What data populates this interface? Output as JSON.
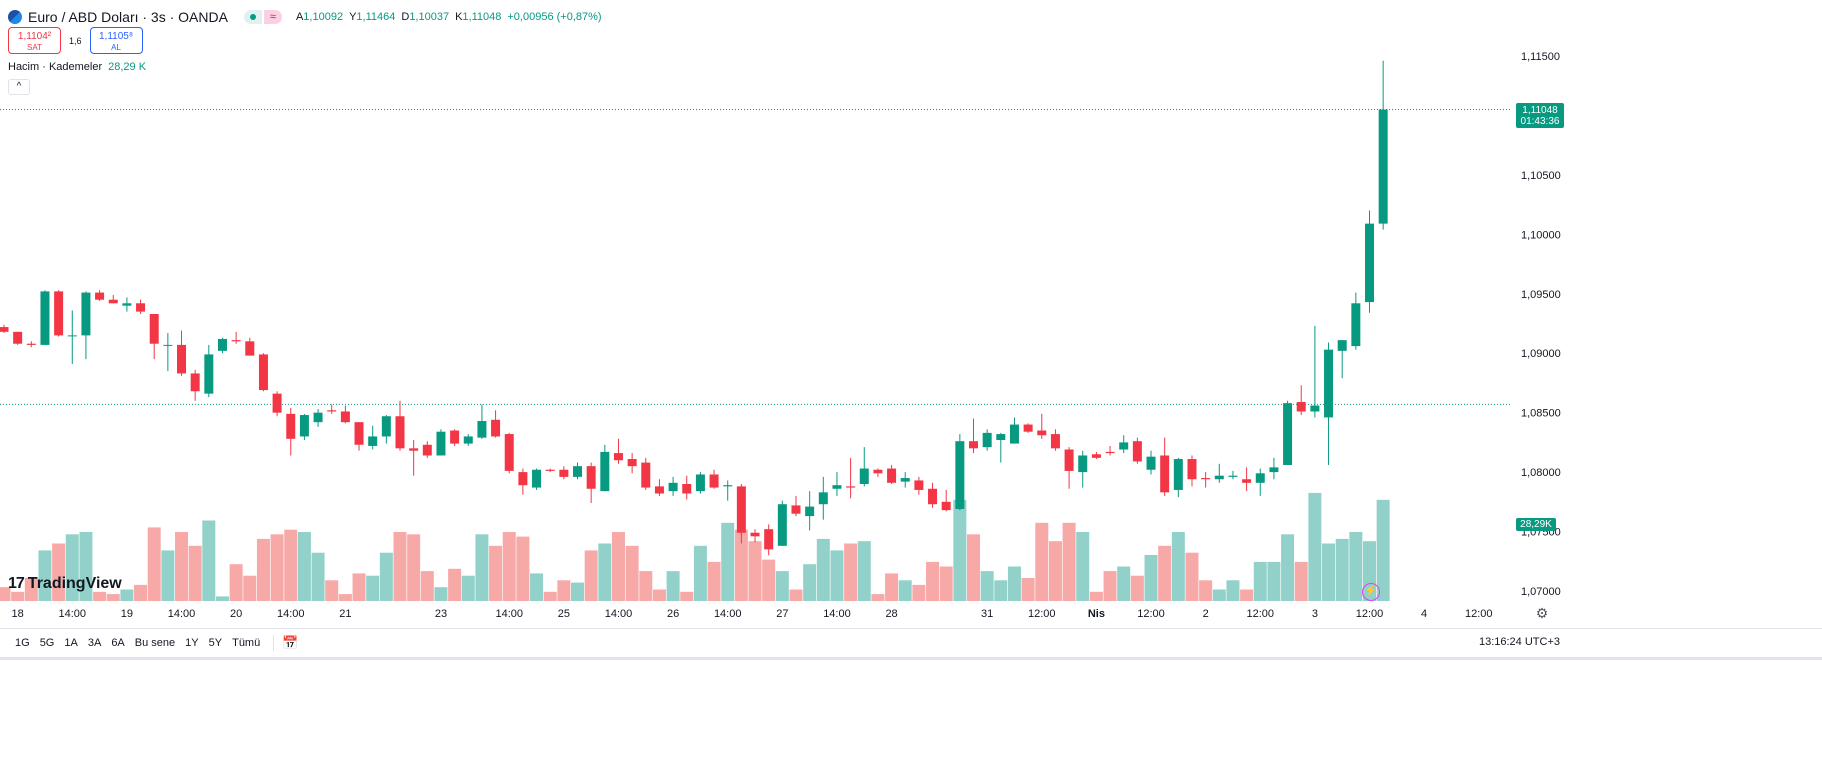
{
  "header": {
    "symbol_title": "Euro / ABD Doları · 3s · OANDA",
    "delay_badge": "≈",
    "ohlc": [
      {
        "k": "A",
        "v": "1,10092"
      },
      {
        "k": "Y",
        "v": "1,11464"
      },
      {
        "k": "D",
        "v": "1,10037"
      },
      {
        "k": "K",
        "v": "1,11048"
      },
      {
        "k": "",
        "v": "+0,00956 (+0,87%)"
      }
    ]
  },
  "trade": {
    "sell_price": "1,1104²",
    "sell_label": "SAT",
    "spread": "1,6",
    "buy_price": "1,1105⁸",
    "buy_label": "AL"
  },
  "volume_legend": {
    "name": "Hacim · Kademeler",
    "value": "28,29 K"
  },
  "last_price_tag": {
    "price": "1,11048",
    "countdown": "01:43:36"
  },
  "volume_tag": "28,29K",
  "logo_text": "TradingView",
  "bottom_bar": {
    "ranges": [
      "1G",
      "5G",
      "1A",
      "3A",
      "6A",
      "Bu sene",
      "1Y",
      "5Y",
      "Tümü"
    ],
    "clock": "13:16:24 UTC+3"
  },
  "colors": {
    "up": "#089981",
    "down": "#f23645",
    "vol_up": "#92d1c9",
    "vol_down": "#f7a9a8"
  },
  "chart_data": {
    "type": "candlestick",
    "y_axis_side": "right",
    "ylim": [
      1.0695,
      1.1165
    ],
    "y_ticks": [
      "1,11500",
      "1,11000",
      "1,10500",
      "1,10000",
      "1,09500",
      "1,09000",
      "1,08500",
      "1,08000",
      "1,07500",
      "1,07000"
    ],
    "y_tick_values": [
      1.115,
      1.11,
      1.105,
      1.1,
      1.095,
      1.09,
      1.085,
      1.08,
      1.075,
      1.07
    ],
    "x_ticks": [
      {
        "i": 1,
        "label": "18"
      },
      {
        "i": 5,
        "label": "14:00"
      },
      {
        "i": 9,
        "label": "19"
      },
      {
        "i": 13,
        "label": "14:00"
      },
      {
        "i": 17,
        "label": "20"
      },
      {
        "i": 21,
        "label": "14:00"
      },
      {
        "i": 25,
        "label": "21"
      },
      {
        "i": 32,
        "label": "23"
      },
      {
        "i": 37,
        "label": "14:00"
      },
      {
        "i": 41,
        "label": "25"
      },
      {
        "i": 45,
        "label": "14:00"
      },
      {
        "i": 49,
        "label": "26"
      },
      {
        "i": 53,
        "label": "14:00"
      },
      {
        "i": 57,
        "label": "27"
      },
      {
        "i": 61,
        "label": "14:00"
      },
      {
        "i": 65,
        "label": "28"
      },
      {
        "i": 72,
        "label": "31"
      },
      {
        "i": 76,
        "label": "12:00"
      },
      {
        "i": 80,
        "label": "Nis"
      },
      {
        "i": 84,
        "label": "12:00"
      },
      {
        "i": 88,
        "label": "2"
      },
      {
        "i": 92,
        "label": "12:00"
      },
      {
        "i": 96,
        "label": "3"
      },
      {
        "i": 100,
        "label": "12:00"
      },
      {
        "i": 104,
        "label": "4"
      },
      {
        "i": 108,
        "label": "12:00"
      }
    ],
    "candles": [
      {
        "o": 1.0922,
        "h": 1.0924,
        "l": 1.0917,
        "c": 1.0918,
        "v": 6
      },
      {
        "o": 1.0918,
        "h": 1.0918,
        "l": 1.0907,
        "c": 1.0908,
        "v": 4
      },
      {
        "o": 1.0908,
        "h": 1.091,
        "l": 1.0905,
        "c": 1.0907,
        "v": 10
      },
      {
        "o": 1.0907,
        "h": 1.0953,
        "l": 1.0907,
        "c": 1.0952,
        "v": 22
      },
      {
        "o": 1.0952,
        "h": 1.0953,
        "l": 1.0914,
        "c": 1.0915,
        "v": 25
      },
      {
        "o": 1.0915,
        "h": 1.0936,
        "l": 1.0891,
        "c": 1.0915,
        "v": 29
      },
      {
        "o": 1.0915,
        "h": 1.0952,
        "l": 1.0895,
        "c": 1.0951,
        "v": 30
      },
      {
        "o": 1.0951,
        "h": 1.0953,
        "l": 1.0944,
        "c": 1.0945,
        "v": 4
      },
      {
        "o": 1.0945,
        "h": 1.0949,
        "l": 1.0942,
        "c": 1.0942,
        "v": 3
      },
      {
        "o": 1.094,
        "h": 1.0947,
        "l": 1.0935,
        "c": 1.0942,
        "v": 5
      },
      {
        "o": 1.0942,
        "h": 1.0945,
        "l": 1.0933,
        "c": 1.0935,
        "v": 7
      },
      {
        "o": 1.0933,
        "h": 1.0933,
        "l": 1.0895,
        "c": 1.0908,
        "v": 32
      },
      {
        "o": 1.0907,
        "h": 1.0917,
        "l": 1.0885,
        "c": 1.0907,
        "v": 22
      },
      {
        "o": 1.0907,
        "h": 1.0919,
        "l": 1.0881,
        "c": 1.0883,
        "v": 30
      },
      {
        "o": 1.0883,
        "h": 1.0886,
        "l": 1.086,
        "c": 1.0868,
        "v": 24
      },
      {
        "o": 1.0866,
        "h": 1.0907,
        "l": 1.0863,
        "c": 1.0899,
        "v": 35
      },
      {
        "o": 1.0902,
        "h": 1.0913,
        "l": 1.09,
        "c": 1.0912,
        "v": 2
      },
      {
        "o": 1.0911,
        "h": 1.0918,
        "l": 1.0908,
        "c": 1.091,
        "v": 16
      },
      {
        "o": 1.091,
        "h": 1.0913,
        "l": 1.0898,
        "c": 1.0898,
        "v": 11
      },
      {
        "o": 1.0899,
        "h": 1.09,
        "l": 1.0868,
        "c": 1.0869,
        "v": 27
      },
      {
        "o": 1.0866,
        "h": 1.0868,
        "l": 1.0847,
        "c": 1.085,
        "v": 29
      },
      {
        "o": 1.0849,
        "h": 1.0854,
        "l": 1.0814,
        "c": 1.0828,
        "v": 31
      },
      {
        "o": 1.083,
        "h": 1.0849,
        "l": 1.0827,
        "c": 1.0848,
        "v": 30
      },
      {
        "o": 1.0842,
        "h": 1.0853,
        "l": 1.0838,
        "c": 1.085,
        "v": 21
      },
      {
        "o": 1.0852,
        "h": 1.0857,
        "l": 1.0849,
        "c": 1.0851,
        "v": 9
      },
      {
        "o": 1.0851,
        "h": 1.0856,
        "l": 1.0841,
        "c": 1.0842,
        "v": 3
      },
      {
        "o": 1.0842,
        "h": 1.0842,
        "l": 1.0818,
        "c": 1.0823,
        "v": 12
      },
      {
        "o": 1.0822,
        "h": 1.0839,
        "l": 1.0819,
        "c": 1.083,
        "v": 11
      },
      {
        "o": 1.083,
        "h": 1.0848,
        "l": 1.0824,
        "c": 1.0847,
        "v": 21
      },
      {
        "o": 1.0847,
        "h": 1.086,
        "l": 1.0818,
        "c": 1.082,
        "v": 30
      },
      {
        "o": 1.082,
        "h": 1.0827,
        "l": 1.0797,
        "c": 1.0818,
        "v": 29
      },
      {
        "o": 1.0823,
        "h": 1.0826,
        "l": 1.0812,
        "c": 1.0814,
        "v": 13
      },
      {
        "o": 1.0814,
        "h": 1.0836,
        "l": 1.0814,
        "c": 1.0834,
        "v": 6
      },
      {
        "o": 1.0835,
        "h": 1.0836,
        "l": 1.0822,
        "c": 1.0824,
        "v": 14
      },
      {
        "o": 1.0824,
        "h": 1.0832,
        "l": 1.0822,
        "c": 1.083,
        "v": 11
      },
      {
        "o": 1.0829,
        "h": 1.0857,
        "l": 1.0828,
        "c": 1.0843,
        "v": 29
      },
      {
        "o": 1.0844,
        "h": 1.0852,
        "l": 1.0829,
        "c": 1.083,
        "v": 24
      },
      {
        "o": 1.0832,
        "h": 1.0833,
        "l": 1.0799,
        "c": 1.0801,
        "v": 30
      },
      {
        "o": 1.08,
        "h": 1.0803,
        "l": 1.0781,
        "c": 1.0789,
        "v": 28
      },
      {
        "o": 1.0787,
        "h": 1.0803,
        "l": 1.0785,
        "c": 1.0802,
        "v": 12
      },
      {
        "o": 1.0802,
        "h": 1.0803,
        "l": 1.08,
        "c": 1.0801,
        "v": 4
      },
      {
        "o": 1.0802,
        "h": 1.0805,
        "l": 1.0794,
        "c": 1.0796,
        "v": 9
      },
      {
        "o": 1.0796,
        "h": 1.0808,
        "l": 1.0794,
        "c": 1.0805,
        "v": 8
      },
      {
        "o": 1.0805,
        "h": 1.0808,
        "l": 1.0774,
        "c": 1.0786,
        "v": 22
      },
      {
        "o": 1.0784,
        "h": 1.0823,
        "l": 1.0784,
        "c": 1.0817,
        "v": 25
      },
      {
        "o": 1.0816,
        "h": 1.0828,
        "l": 1.0807,
        "c": 1.081,
        "v": 30
      },
      {
        "o": 1.0811,
        "h": 1.0816,
        "l": 1.0799,
        "c": 1.0805,
        "v": 24
      },
      {
        "o": 1.0808,
        "h": 1.0812,
        "l": 1.0785,
        "c": 1.0787,
        "v": 13
      },
      {
        "o": 1.0788,
        "h": 1.0794,
        "l": 1.078,
        "c": 1.0782,
        "v": 5
      },
      {
        "o": 1.0784,
        "h": 1.0796,
        "l": 1.078,
        "c": 1.0791,
        "v": 13
      },
      {
        "o": 1.079,
        "h": 1.0797,
        "l": 1.0777,
        "c": 1.0782,
        "v": 4
      },
      {
        "o": 1.0784,
        "h": 1.08,
        "l": 1.0782,
        "c": 1.0798,
        "v": 24
      },
      {
        "o": 1.0798,
        "h": 1.0802,
        "l": 1.0786,
        "c": 1.0787,
        "v": 17
      },
      {
        "o": 1.0788,
        "h": 1.0793,
        "l": 1.0776,
        "c": 1.0789,
        "v": 34
      },
      {
        "o": 1.0788,
        "h": 1.079,
        "l": 1.074,
        "c": 1.0749,
        "v": 31
      },
      {
        "o": 1.0749,
        "h": 1.0752,
        "l": 1.0741,
        "c": 1.0746,
        "v": 26
      },
      {
        "o": 1.0752,
        "h": 1.0756,
        "l": 1.073,
        "c": 1.0735,
        "v": 18
      },
      {
        "o": 1.0738,
        "h": 1.0776,
        "l": 1.0738,
        "c": 1.0773,
        "v": 13
      },
      {
        "o": 1.0772,
        "h": 1.078,
        "l": 1.0763,
        "c": 1.0765,
        "v": 5
      },
      {
        "o": 1.0763,
        "h": 1.0784,
        "l": 1.0751,
        "c": 1.0771,
        "v": 16
      },
      {
        "o": 1.0773,
        "h": 1.0796,
        "l": 1.076,
        "c": 1.0783,
        "v": 27
      },
      {
        "o": 1.0786,
        "h": 1.08,
        "l": 1.078,
        "c": 1.0789,
        "v": 22
      },
      {
        "o": 1.0788,
        "h": 1.0812,
        "l": 1.0778,
        "c": 1.0787,
        "v": 25
      },
      {
        "o": 1.079,
        "h": 1.0821,
        "l": 1.0788,
        "c": 1.0803,
        "v": 26
      },
      {
        "o": 1.0802,
        "h": 1.0803,
        "l": 1.0796,
        "c": 1.0799,
        "v": 3
      },
      {
        "o": 1.0803,
        "h": 1.0806,
        "l": 1.079,
        "c": 1.0791,
        "v": 12
      },
      {
        "o": 1.0792,
        "h": 1.08,
        "l": 1.0787,
        "c": 1.0795,
        "v": 9
      },
      {
        "o": 1.0793,
        "h": 1.0796,
        "l": 1.0781,
        "c": 1.0785,
        "v": 7
      },
      {
        "o": 1.0786,
        "h": 1.0791,
        "l": 1.077,
        "c": 1.0773,
        "v": 17
      },
      {
        "o": 1.0775,
        "h": 1.0785,
        "l": 1.0767,
        "c": 1.0768,
        "v": 15
      },
      {
        "o": 1.0769,
        "h": 1.0832,
        "l": 1.0768,
        "c": 1.0826,
        "v": 44
      },
      {
        "o": 1.0826,
        "h": 1.0845,
        "l": 1.0816,
        "c": 1.082,
        "v": 29
      },
      {
        "o": 1.0821,
        "h": 1.0836,
        "l": 1.0818,
        "c": 1.0833,
        "v": 13
      },
      {
        "o": 1.0827,
        "h": 1.0833,
        "l": 1.0808,
        "c": 1.0832,
        "v": 9
      },
      {
        "o": 1.0824,
        "h": 1.0846,
        "l": 1.0824,
        "c": 1.084,
        "v": 15
      },
      {
        "o": 1.084,
        "h": 1.0841,
        "l": 1.0833,
        "c": 1.0834,
        "v": 10
      },
      {
        "o": 1.0835,
        "h": 1.0849,
        "l": 1.0828,
        "c": 1.0831,
        "v": 34
      },
      {
        "o": 1.0832,
        "h": 1.0836,
        "l": 1.0818,
        "c": 1.082,
        "v": 26
      },
      {
        "o": 1.0819,
        "h": 1.0821,
        "l": 1.0786,
        "c": 1.0801,
        "v": 34
      },
      {
        "o": 1.08,
        "h": 1.0818,
        "l": 1.0787,
        "c": 1.0814,
        "v": 30
      },
      {
        "o": 1.0815,
        "h": 1.0817,
        "l": 1.0811,
        "c": 1.0812,
        "v": 4
      },
      {
        "o": 1.0817,
        "h": 1.0822,
        "l": 1.0814,
        "c": 1.0816,
        "v": 13
      },
      {
        "o": 1.0819,
        "h": 1.0831,
        "l": 1.0816,
        "c": 1.0825,
        "v": 15
      },
      {
        "o": 1.0826,
        "h": 1.0829,
        "l": 1.0807,
        "c": 1.0809,
        "v": 11
      },
      {
        "o": 1.0802,
        "h": 1.0818,
        "l": 1.0798,
        "c": 1.0813,
        "v": 20
      },
      {
        "o": 1.0814,
        "h": 1.0829,
        "l": 1.078,
        "c": 1.0783,
        "v": 24
      },
      {
        "o": 1.0785,
        "h": 1.0812,
        "l": 1.0779,
        "c": 1.0811,
        "v": 30
      },
      {
        "o": 1.0811,
        "h": 1.0814,
        "l": 1.0788,
        "c": 1.0794,
        "v": 21
      },
      {
        "o": 1.0795,
        "h": 1.08,
        "l": 1.0787,
        "c": 1.0794,
        "v": 9
      },
      {
        "o": 1.0794,
        "h": 1.0807,
        "l": 1.0791,
        "c": 1.0797,
        "v": 5
      },
      {
        "o": 1.0796,
        "h": 1.0801,
        "l": 1.0794,
        "c": 1.0797,
        "v": 9
      },
      {
        "o": 1.0794,
        "h": 1.0804,
        "l": 1.0784,
        "c": 1.0791,
        "v": 5
      },
      {
        "o": 1.0791,
        "h": 1.0803,
        "l": 1.078,
        "c": 1.0799,
        "v": 17
      },
      {
        "o": 1.08,
        "h": 1.0812,
        "l": 1.0794,
        "c": 1.0804,
        "v": 17
      },
      {
        "o": 1.0806,
        "h": 1.086,
        "l": 1.0806,
        "c": 1.0858,
        "v": 29
      },
      {
        "o": 1.0859,
        "h": 1.0873,
        "l": 1.0848,
        "c": 1.0851,
        "v": 17
      },
      {
        "o": 1.0851,
        "h": 1.0923,
        "l": 1.0846,
        "c": 1.0856,
        "v": 47
      },
      {
        "o": 1.0846,
        "h": 1.0909,
        "l": 1.0806,
        "c": 1.0903,
        "v": 25
      },
      {
        "o": 1.0902,
        "h": 1.0911,
        "l": 1.0879,
        "c": 1.0911,
        "v": 27
      },
      {
        "o": 1.0906,
        "h": 1.0951,
        "l": 1.0903,
        "c": 1.0942,
        "v": 30
      },
      {
        "o": 1.0943,
        "h": 1.102,
        "l": 1.0934,
        "c": 1.1009,
        "v": 26
      },
      {
        "o": 1.1009,
        "h": 1.1146,
        "l": 1.1004,
        "c": 1.1105,
        "v": 44
      }
    ],
    "price_lines": [
      1.1105,
      1.0857
    ]
  }
}
